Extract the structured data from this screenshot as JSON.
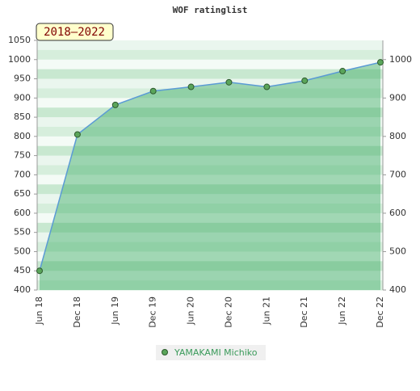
{
  "chart_data": {
    "type": "area",
    "title": "WOF ratinglist",
    "label": "2018–2022",
    "categories": [
      "Jun 18",
      "Dec 18",
      "Jun 19",
      "Dec 19",
      "Jun 20",
      "Dec 20",
      "Jun 21",
      "Dec 21",
      "Jun 22",
      "Dec 22"
    ],
    "series": [
      {
        "name": "YAMAKAMI Michiko",
        "color": "#5aa55a",
        "values": [
          450,
          805,
          882,
          918,
          929,
          941,
          929,
          945,
          970,
          993
        ]
      }
    ],
    "ylim": [
      400,
      1050
    ],
    "yticks": [
      400,
      450,
      500,
      550,
      600,
      650,
      700,
      750,
      800,
      850,
      900,
      950,
      1000,
      1050
    ],
    "y2lim": [
      400,
      1050
    ],
    "y2ticks": [
      400,
      500,
      600,
      700,
      800,
      900,
      1000
    ]
  }
}
